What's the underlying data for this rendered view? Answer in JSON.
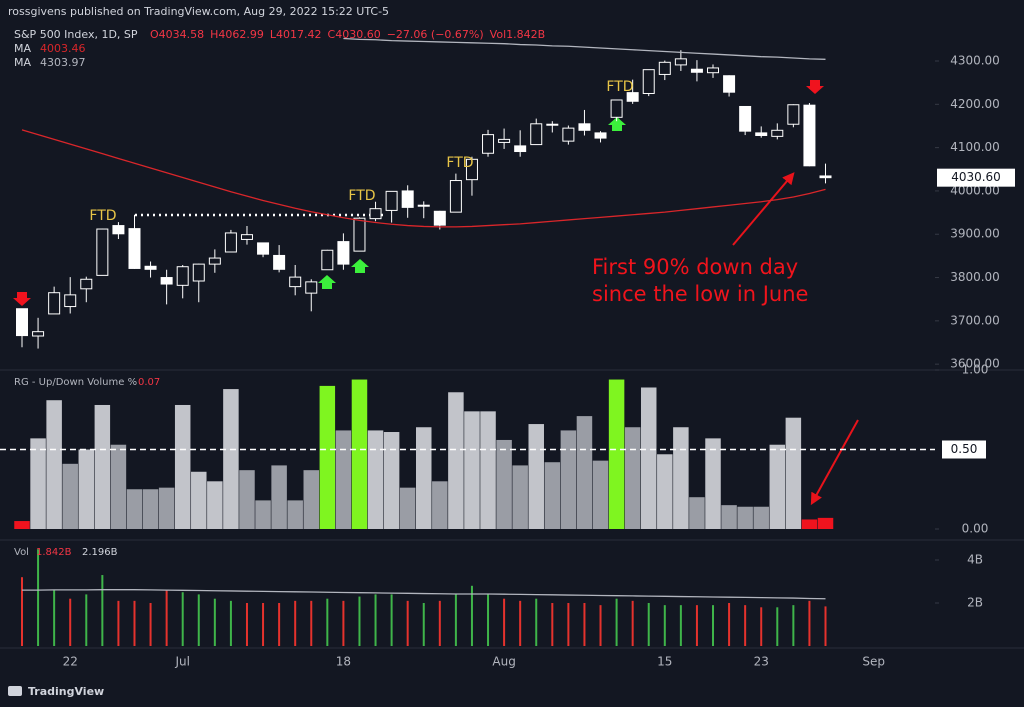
{
  "header": {
    "publisher": "rossgivens published on TradingView.com, Aug 29, 2022 15:22 UTC-5",
    "symbol": "S&P 500 Index, 1D, SP",
    "ohlc": [
      "O4034.58",
      "H4062.99",
      "L4017.42",
      "C4030.60",
      "−27.06 (−0.67%)",
      "Vol1.842B"
    ]
  },
  "footer": "TradingView",
  "chart_data": [
    {
      "type": "candlestick",
      "open": [
        3728,
        3665,
        3716,
        3733,
        3774,
        3805,
        3920,
        3913,
        3826,
        3800,
        3782,
        3792,
        3831,
        3859,
        3888,
        3880,
        3851,
        3779,
        3764,
        3818,
        3883,
        3861,
        3936,
        3955,
        4000,
        3966,
        3953,
        3951,
        4026,
        4087,
        4112,
        4104,
        4107,
        4154,
        4115,
        4155,
        4134,
        4170,
        4227,
        4225,
        4269,
        4291,
        4281,
        4273,
        4266,
        4195,
        4134,
        4126,
        4154,
        4198,
        4034.58
      ],
      "high": [
        3728,
        3707,
        3779,
        3801,
        3802,
        3913,
        3928,
        3945,
        3837,
        3818,
        3829,
        3832,
        3865,
        3910,
        3919,
        3880,
        3875,
        3829,
        3796,
        3864,
        3902,
        3939,
        3975,
        3999,
        4013,
        3976,
        3954,
        4040,
        4079,
        4141,
        4144,
        4140,
        4167,
        4161,
        4151,
        4187,
        4138,
        4211,
        4257,
        4280,
        4301,
        4325,
        4302,
        4292,
        4267,
        4195,
        4149,
        4156,
        4200,
        4203,
        4062.99
      ],
      "low": [
        3639,
        3636,
        3716,
        3717,
        3743,
        3805,
        3889,
        3820,
        3800,
        3738,
        3752,
        3743,
        3811,
        3859,
        3876,
        3847,
        3812,
        3759,
        3722,
        3818,
        3818,
        3861,
        3930,
        3927,
        3938,
        3937,
        3911,
        3951,
        3989,
        4079,
        4097,
        4079,
        4107,
        4135,
        4107,
        4128,
        4112,
        4161,
        4201,
        4219,
        4256,
        4277,
        4253,
        4261,
        4218,
        4129,
        4123,
        4119,
        4147,
        4057,
        4017.42
      ],
      "close": [
        3666,
        3675,
        3765,
        3760,
        3796,
        3912,
        3901,
        3821,
        3819,
        3785,
        3825,
        3831,
        3845,
        3903,
        3899,
        3854,
        3819,
        3801,
        3790,
        3863,
        3831,
        3937,
        3959,
        3999,
        3962,
        3967,
        3921,
        4024,
        4073,
        4130,
        4119,
        4091,
        4155,
        4152,
        4145,
        4140,
        4122,
        4210,
        4207,
        4280,
        4297,
        4305,
        4274,
        4284,
        4228,
        4138,
        4128,
        4140,
        4199,
        4058,
        4030.6
      ],
      "up_color": "#131722",
      "down_color": "#ffffff",
      "wick_color": "#ffffff",
      "series": [
        {
          "name": "MA",
          "color": "#d9262a",
          "values": [
            4141,
            4130,
            4119,
            4108,
            4097,
            4086,
            4075,
            4064,
            4053,
            4042,
            4031,
            4020,
            4009,
            3998,
            3988,
            3978,
            3969,
            3960,
            3952,
            3945,
            3938,
            3932,
            3927,
            3923,
            3920,
            3918,
            3917,
            3917,
            3918,
            3920,
            3922,
            3924,
            3927,
            3930,
            3933,
            3936,
            3939,
            3942,
            3945,
            3948,
            3951,
            3955,
            3959,
            3963,
            3967,
            3971,
            3975,
            3980,
            3986,
            3994,
            4003.46
          ]
        },
        {
          "name": "MA",
          "color": "#b2b5be",
          "values": [
            null,
            null,
            null,
            null,
            null,
            null,
            null,
            null,
            null,
            null,
            null,
            null,
            null,
            null,
            null,
            null,
            null,
            null,
            null,
            null,
            4352,
            4350,
            4349,
            4347,
            4346,
            4345,
            4344,
            4343,
            4342,
            4341,
            4340,
            4338,
            4337,
            4335,
            4334,
            4332,
            4330,
            4328,
            4326,
            4324,
            4322,
            4320,
            4318,
            4316,
            4314,
            4312,
            4310,
            4309,
            4307,
            4305,
            4303.97
          ]
        }
      ],
      "ylim": [
        3586.5,
        4371.6
      ],
      "yticks": [
        {
          "value": 3600,
          "label": "3600.00"
        },
        {
          "value": 3700,
          "label": "3700.00"
        },
        {
          "value": 3800,
          "label": "3800.00"
        },
        {
          "value": 3900,
          "label": "3900.00"
        },
        {
          "value": 4000,
          "label": "4000.00"
        },
        {
          "value": 4100,
          "label": "4100.00"
        },
        {
          "value": 4200,
          "label": "4200.00"
        },
        {
          "value": 4300,
          "label": "4300.00"
        }
      ],
      "last_price": {
        "value": 4030.6,
        "label": "4030.60"
      },
      "annotations": [
        "FTD",
        "FTD",
        "FTD",
        "FTD"
      ],
      "note": [
        "First 90% down day",
        "since the low in June"
      ]
    },
    {
      "type": "bar",
      "title": "RG - Up/Down Volume %",
      "values": [
        0.05,
        0.57,
        0.81,
        0.41,
        0.5,
        0.78,
        0.53,
        0.25,
        0.25,
        0.26,
        0.78,
        0.36,
        0.3,
        0.88,
        0.37,
        0.18,
        0.4,
        0.18,
        0.37,
        0.9,
        0.62,
        0.94,
        0.62,
        0.61,
        0.26,
        0.64,
        0.3,
        0.86,
        0.74,
        0.74,
        0.56,
        0.4,
        0.66,
        0.42,
        0.62,
        0.71,
        0.43,
        0.94,
        0.64,
        0.89,
        0.47,
        0.64,
        0.2,
        0.57,
        0.15,
        0.14,
        0.14,
        0.53,
        0.7,
        0.06,
        0.07
      ],
      "colors": [
        "#f0131e",
        "#c2c4ca",
        "#c2c4ca",
        "#9a9da5",
        "#c2c4ca",
        "#c2c4ca",
        "#9a9da5",
        "#9a9da5",
        "#9a9da5",
        "#9a9da5",
        "#c2c4ca",
        "#c2c4ca",
        "#c2c4ca",
        "#c2c4ca",
        "#9a9da5",
        "#9a9da5",
        "#9a9da5",
        "#9a9da5",
        "#9a9da5",
        "#7ff520",
        "#9a9da5",
        "#7ff520",
        "#c2c4ca",
        "#c2c4ca",
        "#9a9da5",
        "#c2c4ca",
        "#9a9da5",
        "#c2c4ca",
        "#c2c4ca",
        "#c2c4ca",
        "#9a9da5",
        "#9a9da5",
        "#c2c4ca",
        "#9a9da5",
        "#9a9da5",
        "#9a9da5",
        "#9a9da5",
        "#7ff520",
        "#9a9da5",
        "#c2c4ca",
        "#c2c4ca",
        "#c2c4ca",
        "#9a9da5",
        "#c2c4ca",
        "#9a9da5",
        "#9a9da5",
        "#9a9da5",
        "#c2c4ca",
        "#c2c4ca",
        "#f0131e",
        "#f0131e"
      ],
      "ylim": [
        0,
        1
      ],
      "yticks": [
        {
          "value": 0,
          "label": "0.00"
        },
        {
          "value": 1,
          "label": "1.00"
        }
      ],
      "hline": {
        "value": 0.5,
        "label": "0.50"
      }
    },
    {
      "type": "bar",
      "title": "Vol",
      "categories": [
        null,
        null,
        null,
        "22",
        null,
        null,
        null,
        null,
        null,
        null,
        "Jul",
        null,
        null,
        null,
        null,
        null,
        null,
        null,
        null,
        null,
        "18",
        null,
        null,
        null,
        null,
        null,
        null,
        null,
        null,
        null,
        "Aug",
        null,
        null,
        null,
        null,
        null,
        null,
        null,
        null,
        null,
        "15",
        null,
        null,
        null,
        null,
        null,
        "23",
        null,
        null,
        null,
        null,
        null,
        null,
        "Sep"
      ],
      "values": [
        3.2,
        4.5,
        2.6,
        2.2,
        2.4,
        3.3,
        2.1,
        2.1,
        2.0,
        2.6,
        2.5,
        2.4,
        2.2,
        2.1,
        2.0,
        2.0,
        2.0,
        2.1,
        2.1,
        2.2,
        2.1,
        2.3,
        2.4,
        2.4,
        2.1,
        2.0,
        2.1,
        2.4,
        2.8,
        2.4,
        2.2,
        2.1,
        2.2,
        2.0,
        2.0,
        2.0,
        1.9,
        2.2,
        2.1,
        2.0,
        1.9,
        1.9,
        1.9,
        1.9,
        2.0,
        1.9,
        1.8,
        1.8,
        1.9,
        2.1,
        1.842,
        null,
        null,
        null
      ],
      "colors": [
        "#e5322d",
        "#3fb54a",
        "#3fb54a",
        "#e5322d",
        "#3fb54a",
        "#3fb54a",
        "#e5322d",
        "#e5322d",
        "#e5322d",
        "#e5322d",
        "#3fb54a",
        "#3fb54a",
        "#3fb54a",
        "#3fb54a",
        "#e5322d",
        "#e5322d",
        "#e5322d",
        "#e5322d",
        "#e5322d",
        "#3fb54a",
        "#e5322d",
        "#3fb54a",
        "#3fb54a",
        "#3fb54a",
        "#e5322d",
        "#3fb54a",
        "#e5322d",
        "#3fb54a",
        "#3fb54a",
        "#3fb54a",
        "#e5322d",
        "#e5322d",
        "#3fb54a",
        "#e5322d",
        "#e5322d",
        "#e5322d",
        "#e5322d",
        "#3fb54a",
        "#e5322d",
        "#3fb54a",
        "#3fb54a",
        "#3fb54a",
        "#e5322d",
        "#3fb54a",
        "#e5322d",
        "#e5322d",
        "#e5322d",
        "#3fb54a",
        "#3fb54a",
        "#e5322d",
        "#e5322d",
        null,
        null,
        null
      ],
      "ma_values": [
        2.6,
        2.6,
        2.61,
        2.61,
        2.61,
        2.62,
        2.62,
        2.62,
        2.61,
        2.6,
        2.59,
        2.58,
        2.57,
        2.56,
        2.55,
        2.54,
        2.53,
        2.52,
        2.51,
        2.5,
        2.49,
        2.48,
        2.47,
        2.46,
        2.45,
        2.44,
        2.43,
        2.42,
        2.42,
        2.42,
        2.41,
        2.4,
        2.39,
        2.38,
        2.37,
        2.36,
        2.35,
        2.34,
        2.33,
        2.32,
        2.31,
        2.3,
        2.29,
        2.28,
        2.27,
        2.26,
        2.25,
        2.24,
        2.23,
        2.21,
        2.196,
        null,
        null,
        null
      ],
      "ma_color": "#b2b5be",
      "legend_labels": [
        "1.842B",
        "2.196B"
      ],
      "ylim": [
        0,
        4.93
      ],
      "yticks": [
        {
          "value": 2,
          "label": "2B"
        },
        {
          "value": 4,
          "label": "4B"
        }
      ]
    }
  ]
}
